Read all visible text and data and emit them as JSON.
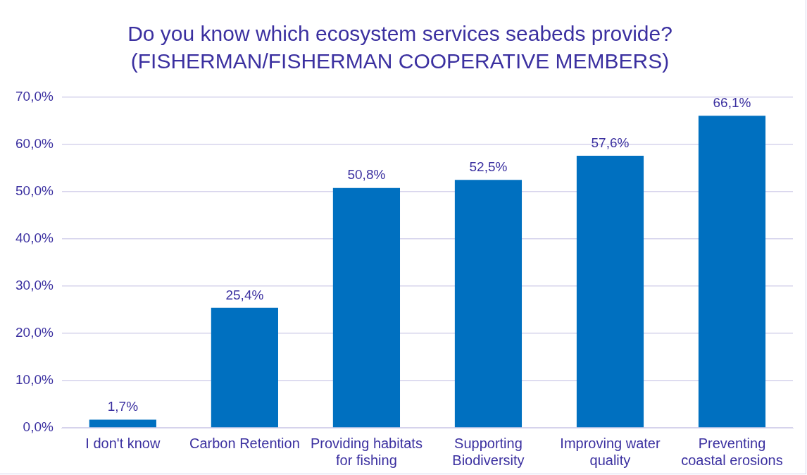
{
  "chart_data": {
    "type": "bar",
    "title": "Do you know which ecosystem services seabeds provide?",
    "subtitle": "(FISHERMAN/FISHERMAN COOPERATIVE MEMBERS)",
    "categories": [
      "I don't know",
      "Carbon Retention",
      "Providing habitats for fishing",
      "Supporting Biodiversity",
      "Improving water quality",
      "Preventing coastal erosions"
    ],
    "values": [
      1.7,
      25.4,
      50.8,
      52.5,
      57.6,
      66.1
    ],
    "value_labels": [
      "1,7%",
      "25,4%",
      "50,8%",
      "52,5%",
      "57,6%",
      "66,1%"
    ],
    "color": "#0070c0",
    "ylim": [
      0,
      70
    ],
    "yticks": [
      {
        "value": 0,
        "label": "0,0%"
      },
      {
        "value": 10,
        "label": "10,0%"
      },
      {
        "value": 20,
        "label": "20,0%"
      },
      {
        "value": 30,
        "label": "30,0%"
      },
      {
        "value": 40,
        "label": "40,0%"
      },
      {
        "value": 50,
        "label": "50,0%"
      },
      {
        "value": 60,
        "label": "60,0%"
      },
      {
        "value": 70,
        "label": "70,0%"
      }
    ],
    "grid": "y",
    "legend": false
  }
}
